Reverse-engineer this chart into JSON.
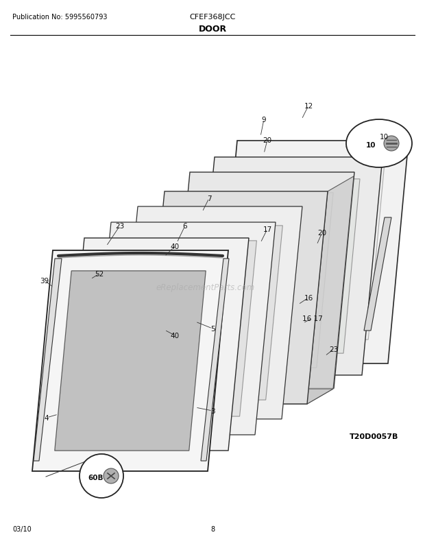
{
  "pub_no": "Publication No: 5995560793",
  "model": "CFEF368JCC",
  "section": "DOOR",
  "date": "03/10",
  "page": "8",
  "diagram_id": "T20D0057B",
  "watermark": "eReplacementParts.com",
  "bg_color": "#ffffff",
  "text_color": "#000000",
  "figsize": [
    6.2,
    8.03
  ],
  "dpi": 100
}
